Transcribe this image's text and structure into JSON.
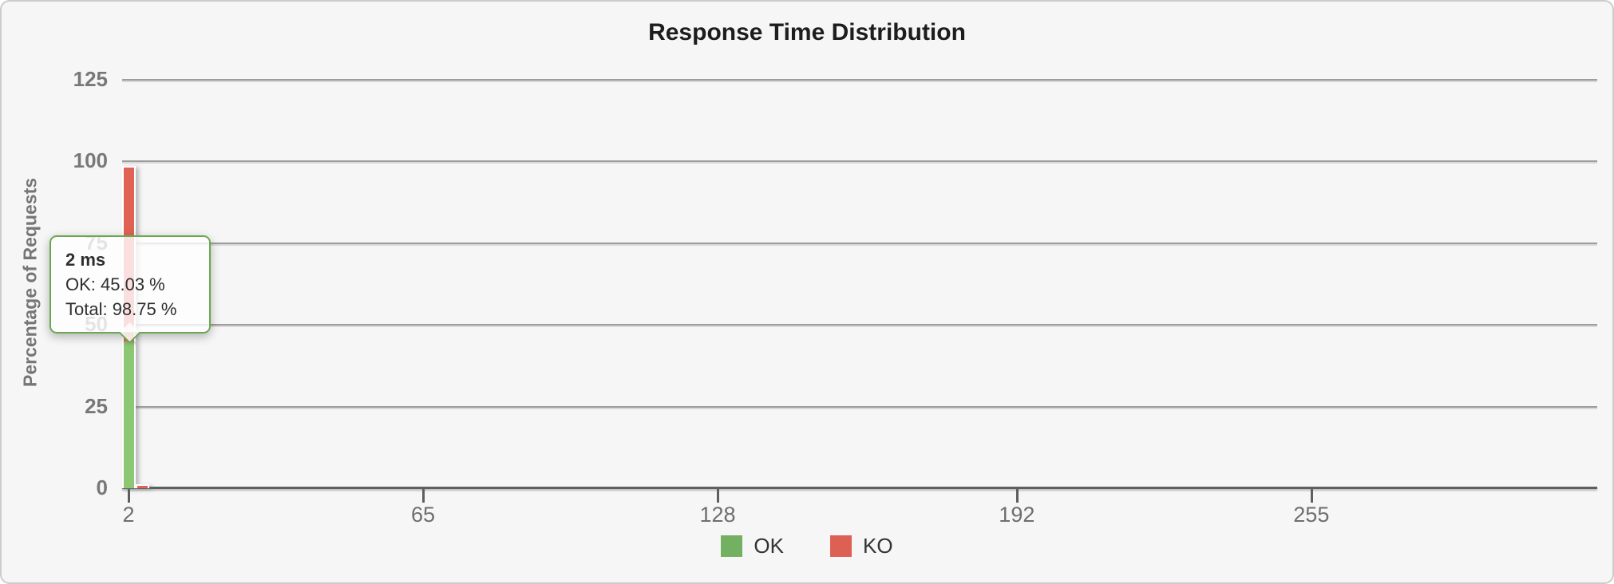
{
  "title": "Response Time Distribution",
  "y_axis": {
    "title": "Percentage of Requests",
    "ticks": [
      0,
      25,
      50,
      75,
      100,
      125
    ]
  },
  "x_axis": {
    "ticks": [
      2,
      65,
      128,
      192,
      255
    ]
  },
  "legend": {
    "items": [
      {
        "label": "OK",
        "color": "#74b061"
      },
      {
        "label": "KO",
        "color": "#dd6153"
      }
    ]
  },
  "tooltip": {
    "heading": "2 ms",
    "lines": [
      "OK: 45.03 %",
      "Total: 98.75 %"
    ],
    "border_color": "#6aa84f"
  },
  "colors": {
    "ok_bar": "#8cc873",
    "ko_bar": "#df6254",
    "panel_background": "#f6f6f6",
    "panel_border": "#cccccc",
    "gridline": "#9d9d9d",
    "axis_line": "#5e5e5e"
  },
  "chart_data": {
    "type": "bar",
    "stacked": true,
    "title": "Response Time Distribution",
    "xlabel": "",
    "ylabel": "Percentage of Requests",
    "x_tick_labels": [
      2,
      65,
      128,
      192,
      255
    ],
    "y_tick_labels": [
      0,
      25,
      50,
      75,
      100,
      125
    ],
    "ylim": [
      0,
      135
    ],
    "grid": "horizontal",
    "legend_position": "bottom-center",
    "series": [
      {
        "name": "OK",
        "color": "#8cc873",
        "points": [
          {
            "x": 2,
            "y": 45.03
          }
        ]
      },
      {
        "name": "KO",
        "color": "#df6254",
        "points": [
          {
            "x": 2,
            "y": 53.72
          },
          {
            "x": 5,
            "y": 1.25
          }
        ]
      }
    ],
    "hovered_point": {
      "x_label": "2 ms",
      "ok_pct": 45.03,
      "total_pct": 98.75
    }
  }
}
